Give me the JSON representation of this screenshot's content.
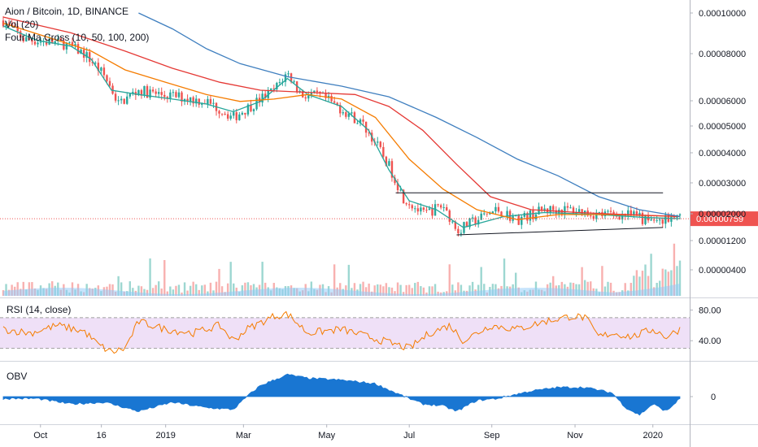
{
  "legend": {
    "symbol": "Aion / Bitcoin, 1D, BINANCE",
    "volume": "Vol (20)",
    "ma": "Four Ma Cross (10, 50, 100, 200)",
    "rsi": "RSI (14, close)",
    "obv": "OBV"
  },
  "colors": {
    "up": "#26a69a",
    "down": "#ef5350",
    "ma10": "#26a69a",
    "ma50": "#f57c00",
    "ma100": "#e53935",
    "ma200": "#3f7fbf",
    "rsi": "#f57c00",
    "rsiband": "#efe0f7",
    "obv": "#1976d2",
    "vol_ma": "#90caf9",
    "price_label": "#ef5350"
  },
  "chart_data": [
    {
      "type": "candlestick",
      "title": "Aion / Bitcoin, 1D, BINANCE",
      "x_ticks": [
        "Oct",
        "16",
        "2019",
        "Mar",
        "May",
        "Jul",
        "Sep",
        "Nov",
        "2020"
      ],
      "y_ticks": [
        "0.00010000",
        "0.00008000",
        "0.00006000",
        "0.00005000",
        "0.00004000",
        "0.00003000",
        "0.00002000",
        "0.00001200",
        "0.00000400"
      ],
      "last_price": "0.00000759",
      "series": [
        {
          "name": "Price",
          "points": [
            [
              0,
              9.1e-05
            ],
            [
              0.03,
              7.2e-05
            ],
            [
              0.06,
              7e-05
            ],
            [
              0.09,
              6.8e-05
            ],
            [
              0.12,
              6e-05
            ],
            [
              0.15,
              4.5e-05
            ],
            [
              0.17,
              3.2e-05
            ],
            [
              0.2,
              3.8e-05
            ],
            [
              0.23,
              3.6e-05
            ],
            [
              0.26,
              3.5e-05
            ],
            [
              0.3,
              3.3e-05
            ],
            [
              0.34,
              2.7e-05
            ],
            [
              0.37,
              3.2e-05
            ],
            [
              0.4,
              3.8e-05
            ],
            [
              0.42,
              4.7e-05
            ],
            [
              0.44,
              3.6e-05
            ],
            [
              0.47,
              3.5e-05
            ],
            [
              0.5,
              3e-05
            ],
            [
              0.53,
              2.5e-05
            ],
            [
              0.56,
              1.7e-05
            ],
            [
              0.59,
              1e-05
            ],
            [
              0.62,
              8e-06
            ],
            [
              0.65,
              9e-06
            ],
            [
              0.67,
              6.5e-06
            ],
            [
              0.7,
              7.5e-06
            ],
            [
              0.73,
              8.5e-06
            ],
            [
              0.76,
              7.5e-06
            ],
            [
              0.8,
              8.5e-06
            ],
            [
              0.84,
              8.5e-06
            ],
            [
              0.88,
              8e-06
            ],
            [
              0.92,
              8e-06
            ],
            [
              0.95,
              7.5e-06
            ],
            [
              1,
              7.6e-06
            ]
          ]
        },
        {
          "name": "MA10",
          "points": [
            [
              0,
              8.5e-05
            ],
            [
              0.05,
              7.1e-05
            ],
            [
              0.1,
              6.6e-05
            ],
            [
              0.13,
              5.6e-05
            ],
            [
              0.16,
              3.8e-05
            ],
            [
              0.2,
              3.6e-05
            ],
            [
              0.25,
              3.4e-05
            ],
            [
              0.3,
              3.2e-05
            ],
            [
              0.34,
              2.9e-05
            ],
            [
              0.38,
              3.3e-05
            ],
            [
              0.42,
              4.4e-05
            ],
            [
              0.45,
              3.6e-05
            ],
            [
              0.5,
              3.1e-05
            ],
            [
              0.54,
              2.3e-05
            ],
            [
              0.57,
              1.4e-05
            ],
            [
              0.6,
              9.5e-06
            ],
            [
              0.64,
              8.5e-06
            ],
            [
              0.68,
              6.8e-06
            ],
            [
              0.74,
              7.8e-06
            ],
            [
              0.8,
              8.2e-06
            ],
            [
              0.88,
              8e-06
            ],
            [
              0.95,
              7.7e-06
            ],
            [
              1,
              7.6e-06
            ]
          ]
        },
        {
          "name": "MA50",
          "points": [
            [
              0,
              8.8e-05
            ],
            [
              0.07,
              7.3e-05
            ],
            [
              0.13,
              6.2e-05
            ],
            [
              0.18,
              4.9e-05
            ],
            [
              0.24,
              4.2e-05
            ],
            [
              0.3,
              3.6e-05
            ],
            [
              0.35,
              3.3e-05
            ],
            [
              0.4,
              3.4e-05
            ],
            [
              0.45,
              3.6e-05
            ],
            [
              0.5,
              3.4e-05
            ],
            [
              0.55,
              2.7e-05
            ],
            [
              0.6,
              1.6e-05
            ],
            [
              0.65,
              1.1e-05
            ],
            [
              0.7,
              8.5e-06
            ],
            [
              0.76,
              7.5e-06
            ],
            [
              0.82,
              8e-06
            ],
            [
              0.9,
              8e-06
            ],
            [
              1,
              7.8e-06
            ]
          ]
        },
        {
          "name": "MA100",
          "points": [
            [
              0,
              9.5e-05
            ],
            [
              0.1,
              7.8e-05
            ],
            [
              0.18,
              6.2e-05
            ],
            [
              0.25,
              5e-05
            ],
            [
              0.32,
              4.2e-05
            ],
            [
              0.38,
              3.8e-05
            ],
            [
              0.45,
              3.7e-05
            ],
            [
              0.52,
              3.6e-05
            ],
            [
              0.57,
              3.1e-05
            ],
            [
              0.62,
              2.3e-05
            ],
            [
              0.67,
              1.5e-05
            ],
            [
              0.72,
              1e-05
            ],
            [
              0.78,
              8.5e-06
            ],
            [
              0.85,
              8.2e-06
            ],
            [
              0.92,
              8e-06
            ],
            [
              1,
              7.8e-06
            ]
          ]
        },
        {
          "name": "MA200",
          "points": [
            [
              0.2,
              0.0001
            ],
            [
              0.25,
              8.2e-05
            ],
            [
              0.3,
              6.4e-05
            ],
            [
              0.35,
              5.3e-05
            ],
            [
              0.42,
              4.5e-05
            ],
            [
              0.5,
              4e-05
            ],
            [
              0.57,
              3.5e-05
            ],
            [
              0.64,
              2.7e-05
            ],
            [
              0.7,
              2.1e-05
            ],
            [
              0.76,
              1.6e-05
            ],
            [
              0.82,
              1.3e-05
            ],
            [
              0.88,
              1e-05
            ],
            [
              0.94,
              8.5e-06
            ],
            [
              1,
              7.8e-06
            ]
          ]
        }
      ]
    },
    {
      "type": "line",
      "title": "RSI (14, close)",
      "y_ticks": [
        "80.00",
        "40.00"
      ],
      "bands": [
        30,
        70
      ],
      "series": [
        {
          "name": "RSI",
          "points": [
            [
              0,
              55
            ],
            [
              0.04,
              50
            ],
            [
              0.08,
              60
            ],
            [
              0.12,
              52
            ],
            [
              0.14,
              35
            ],
            [
              0.16,
              25
            ],
            [
              0.18,
              30
            ],
            [
              0.2,
              65
            ],
            [
              0.24,
              55
            ],
            [
              0.28,
              50
            ],
            [
              0.32,
              60
            ],
            [
              0.34,
              40
            ],
            [
              0.36,
              55
            ],
            [
              0.4,
              72
            ],
            [
              0.42,
              75
            ],
            [
              0.45,
              50
            ],
            [
              0.5,
              55
            ],
            [
              0.54,
              45
            ],
            [
              0.58,
              35
            ],
            [
              0.6,
              30
            ],
            [
              0.63,
              50
            ],
            [
              0.66,
              60
            ],
            [
              0.68,
              40
            ],
            [
              0.72,
              60
            ],
            [
              0.76,
              55
            ],
            [
              0.8,
              65
            ],
            [
              0.84,
              72
            ],
            [
              0.86,
              70
            ],
            [
              0.88,
              45
            ],
            [
              0.9,
              50
            ],
            [
              0.93,
              45
            ],
            [
              0.96,
              55
            ],
            [
              0.98,
              45
            ],
            [
              1,
              55
            ]
          ]
        }
      ]
    },
    {
      "type": "area",
      "title": "OBV",
      "y_ticks": [
        "0"
      ],
      "series": [
        {
          "name": "OBV",
          "points": [
            [
              0,
              -0.05
            ],
            [
              0.05,
              -0.05
            ],
            [
              0.1,
              -0.2
            ],
            [
              0.15,
              -0.15
            ],
            [
              0.2,
              -0.4
            ],
            [
              0.25,
              -0.15
            ],
            [
              0.3,
              -0.3
            ],
            [
              0.34,
              -0.35
            ],
            [
              0.36,
              0.0
            ],
            [
              0.38,
              0.3
            ],
            [
              0.42,
              0.6
            ],
            [
              0.45,
              0.5
            ],
            [
              0.5,
              0.45
            ],
            [
              0.55,
              0.35
            ],
            [
              0.58,
              0.1
            ],
            [
              0.6,
              -0.05
            ],
            [
              0.62,
              -0.2
            ],
            [
              0.65,
              -0.25
            ],
            [
              0.67,
              -0.4
            ],
            [
              0.7,
              -0.1
            ],
            [
              0.73,
              -0.05
            ],
            [
              0.78,
              0.15
            ],
            [
              0.82,
              0.25
            ],
            [
              0.86,
              0.25
            ],
            [
              0.9,
              0.1
            ],
            [
              0.92,
              -0.3
            ],
            [
              0.94,
              -0.5
            ],
            [
              0.96,
              -0.2
            ],
            [
              0.98,
              -0.4
            ],
            [
              1,
              -0.05
            ]
          ]
        }
      ]
    }
  ]
}
